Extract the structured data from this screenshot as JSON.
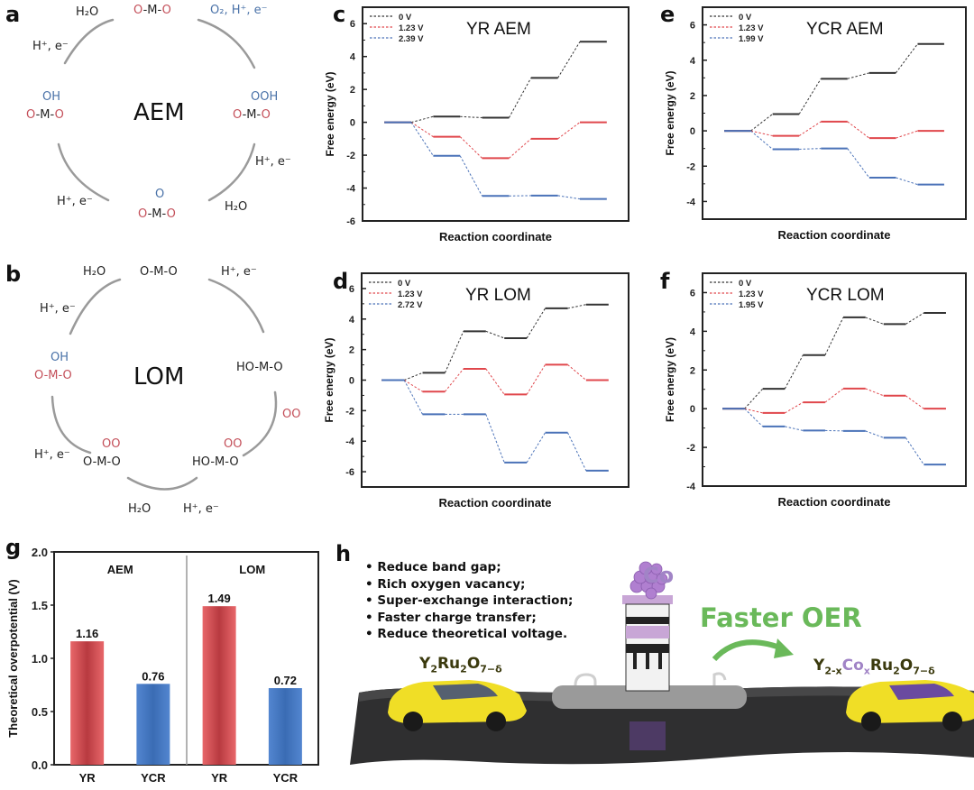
{
  "panels": {
    "a": {
      "letter": "a",
      "center": "AEM",
      "states": {
        "top": [
          "O",
          "-M-",
          "O"
        ],
        "right_top": "OOH",
        "right": [
          "O",
          "-M-",
          "O"
        ],
        "bottom_top": "O",
        "bottom": [
          "O",
          "-M-",
          "O"
        ],
        "left_top": "OH",
        "left": [
          "O",
          "-M-",
          "O"
        ]
      },
      "labels": {
        "h2o_top": "H₂O",
        "o2_top": "O₂, H⁺, e⁻",
        "h_left_top": "H⁺, e⁻",
        "h_right": "H⁺, e⁻",
        "h2o_right": "H₂O",
        "h_left_bottom": "H⁺, e⁻"
      }
    },
    "b": {
      "letter": "b",
      "center": "LOM",
      "labels": {
        "h2o_top": "H₂O",
        "h_top_left": "H⁺, e⁻",
        "h_top_right": "H⁺, e⁻",
        "oo_right": "OO",
        "h_bottom_left": "H⁺, e⁻",
        "h2o_bottom": "H₂O",
        "h_bottom": "H⁺, e⁻"
      },
      "states": {
        "top": "O-M-O",
        "left_top": "OH",
        "left": "O-M-O",
        "right": "HO-M-O",
        "bottom_right_top": "OO",
        "bottom_right": "HO-M-O",
        "bottom_left_top": "OO",
        "bottom_left": "O-M-O"
      }
    },
    "h": {
      "letter": "h",
      "bullets": [
        "Reduce band gap;",
        "Rich oxygen vacancy;",
        "Super-exchange interaction;",
        "Faster charge transfer;",
        "Reduce theoretical voltage."
      ],
      "dopant_label": "Co",
      "arrow_label": "Faster OER",
      "formula_left": {
        "Y": "Y",
        "Y_sub": "2",
        "Ru": "Ru",
        "Ru_sub": "2",
        "O": "O",
        "O_sub": "7−δ"
      },
      "formula_right": {
        "Y": "Y",
        "Y_sub": "2-x",
        "Co": "Co",
        "Co_sub": "x",
        "Ru": "Ru",
        "Ru_sub": "2",
        "O": "O",
        "O_sub": "7−δ"
      },
      "colors": {
        "green": "#6ab95a",
        "purple": "#9a78b8",
        "car": "#f2e12a",
        "road": "#2e2e2e"
      }
    }
  },
  "chart_data": [
    {
      "id": "c",
      "letter": "c",
      "type": "line",
      "title": "YR AEM",
      "xlabel": "Reaction coordinate",
      "ylabel": "Free energy (eV)",
      "ylim": [
        -6,
        7
      ],
      "yticks": [
        -6,
        -4,
        -2,
        0,
        2,
        4,
        6
      ],
      "legend": "top-left",
      "series": [
        {
          "name": "0 V",
          "color": "#333333",
          "values": [
            0,
            0.35,
            0.28,
            2.7,
            4.9
          ]
        },
        {
          "name": "1.23 V",
          "color": "#e0474c",
          "values": [
            0,
            -0.88,
            -2.18,
            -1.0,
            0
          ]
        },
        {
          "name": "2.39 V",
          "color": "#4a72b8",
          "values": [
            0,
            -2.04,
            -4.48,
            -4.46,
            -4.66
          ]
        }
      ]
    },
    {
      "id": "e",
      "letter": "e",
      "type": "line",
      "title": "YCR AEM",
      "xlabel": "Reaction coordinate",
      "ylabel": "Free energy (eV)",
      "ylim": [
        -5,
        7
      ],
      "yticks": [
        -4,
        -2,
        0,
        2,
        4,
        6
      ],
      "legend": "top-left",
      "series": [
        {
          "name": "0 V",
          "color": "#333333",
          "values": [
            0,
            0.95,
            2.95,
            3.28,
            4.92
          ]
        },
        {
          "name": "1.23 V",
          "color": "#e0474c",
          "values": [
            0,
            -0.28,
            0.52,
            -0.41,
            0
          ]
        },
        {
          "name": "1.99 V",
          "color": "#4a72b8",
          "values": [
            0,
            -1.04,
            -1.0,
            -2.65,
            -3.04
          ]
        }
      ]
    },
    {
      "id": "d",
      "letter": "d",
      "type": "line",
      "title": "YR LOM",
      "xlabel": "Reaction coordinate",
      "ylabel": "Free energy (eV)",
      "ylim": [
        -7,
        7
      ],
      "yticks": [
        -6,
        -4,
        -2,
        0,
        2,
        4,
        6
      ],
      "legend": "top-left",
      "series": [
        {
          "name": "0 V",
          "color": "#333333",
          "values": [
            0,
            0.48,
            3.2,
            2.75,
            4.7,
            4.95
          ]
        },
        {
          "name": "1.23 V",
          "color": "#e0474c",
          "values": [
            0,
            -0.75,
            0.74,
            -0.94,
            1.01,
            0
          ]
        },
        {
          "name": "2.72 V",
          "color": "#4a72b8",
          "values": [
            0,
            -2.24,
            -2.24,
            -5.4,
            -3.44,
            -5.93
          ]
        }
      ]
    },
    {
      "id": "f",
      "letter": "f",
      "type": "line",
      "title": "YCR LOM",
      "xlabel": "Reaction coordinate",
      "ylabel": "Free energy (eV)",
      "ylim": [
        -4,
        7
      ],
      "yticks": [
        -4,
        -2,
        0,
        2,
        4,
        6
      ],
      "legend": "top-left",
      "series": [
        {
          "name": "0 V",
          "color": "#333333",
          "values": [
            0,
            1.03,
            2.77,
            4.72,
            4.37,
            4.95
          ]
        },
        {
          "name": "1.23 V",
          "color": "#e0474c",
          "values": [
            0,
            -0.22,
            0.33,
            1.04,
            0.67,
            0
          ]
        },
        {
          "name": "1.95 V",
          "color": "#4a72b8",
          "values": [
            0,
            -0.92,
            -1.13,
            -1.15,
            -1.5,
            -2.89
          ]
        }
      ]
    },
    {
      "id": "g",
      "letter": "g",
      "type": "bar",
      "ylabel": "Theoretical overpotential (V)",
      "ylim": [
        0,
        2.0
      ],
      "yticks": [
        0.0,
        0.5,
        1.0,
        1.5,
        2.0
      ],
      "groups": [
        "AEM",
        "LOM"
      ],
      "categories": [
        "YR",
        "YCR",
        "YR",
        "YCR"
      ],
      "values": [
        1.16,
        0.76,
        1.49,
        0.72
      ],
      "value_labels": [
        "1.16",
        "0.76",
        "1.49",
        "0.72"
      ],
      "colors": [
        "#e05a5e",
        "#4a7cc4",
        "#e05a5e",
        "#4a7cc4"
      ]
    }
  ]
}
